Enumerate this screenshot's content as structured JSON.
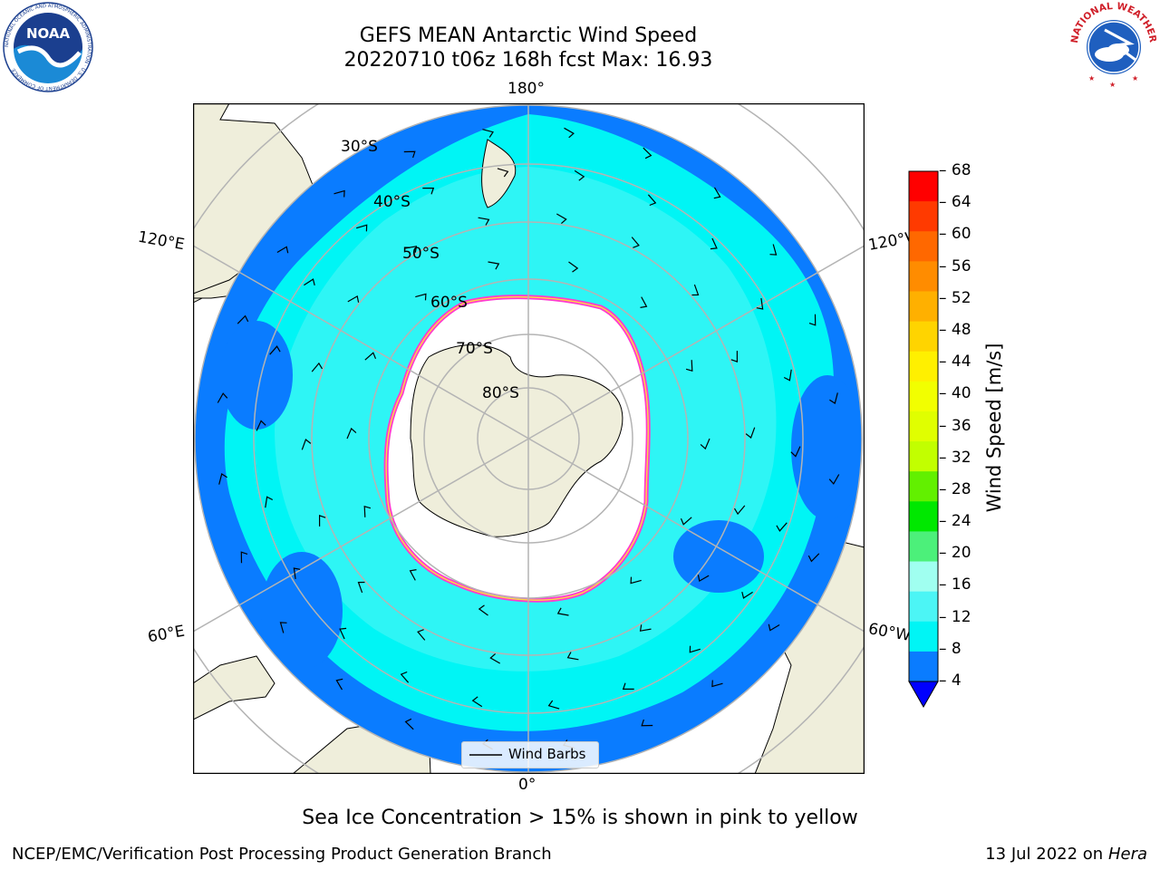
{
  "header": {
    "title_line1": "GEFS MEAN Antarctic Wind Speed",
    "title_line2": "20220710 t06z 168h fcst   Max: 16.93"
  },
  "logos": {
    "noaa": {
      "text": "NOAA",
      "ring_text": "NATIONAL OCEANIC AND ATMOSPHERIC ADMINISTRATION · U.S. DEPARTMENT OF COMMERCE"
    },
    "nws": {
      "ring_text": "NATIONAL WEATHER SERVICE"
    }
  },
  "map": {
    "projection": "south-polar-stereographic",
    "longitude_labels": {
      "top": "180°",
      "bottom": "0°",
      "upper_left": "120°E",
      "upper_right": "120°W",
      "lower_left": "60°E",
      "lower_right": "60°W"
    },
    "latitude_labels": [
      "30°S",
      "40°S",
      "50°S",
      "60°S",
      "70°S",
      "80°S"
    ],
    "colors": {
      "ocean_low": "#0a7cff",
      "ocean_mid": "#00f5f5",
      "ocean_high": "#4cf5f5",
      "land": "#efeedb",
      "ice": "#ffffff",
      "ice_edge_pink": "#ff3ad0",
      "ice_edge_yellow": "#ffd24a",
      "grid": "#b4b4b4"
    }
  },
  "legend": {
    "label": "Wind Barbs"
  },
  "colorbar": {
    "label": "Wind Speed [m/s]",
    "ticks": [
      "68",
      "64",
      "60",
      "56",
      "52",
      "48",
      "44",
      "40",
      "36",
      "32",
      "28",
      "24",
      "20",
      "16",
      "12",
      "8",
      "4"
    ],
    "colors": [
      "#ff0000",
      "#ff3a00",
      "#ff6800",
      "#ff8c00",
      "#ffb000",
      "#ffd400",
      "#fff000",
      "#f2ff00",
      "#e0ff00",
      "#c2ff00",
      "#62f000",
      "#00e800",
      "#4cf07a",
      "#a0fff0",
      "#4cf5f5",
      "#00f5f5",
      "#0a7cff"
    ],
    "under_color": "#0000ff"
  },
  "footer": {
    "caption": "Sea Ice Concentration > 15% is shown in pink to yellow",
    "left": "NCEP/EMC/Verification Post Processing Product Generation Branch",
    "right_date": "13 Jul 2022 on ",
    "right_host": "Hera"
  }
}
